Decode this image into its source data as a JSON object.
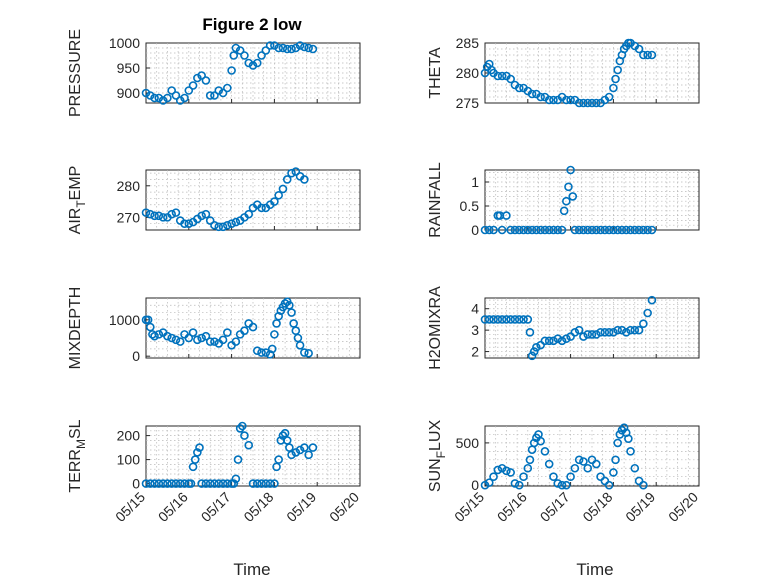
{
  "colors": {
    "marker": "#0072BD",
    "axis": "#262626",
    "grid": "#b8b8b8"
  },
  "chart_data": {
    "type": "scatter",
    "title": "Figure 2 low",
    "marker": "circle-open",
    "grid": true,
    "x_axis": {
      "ticks": [
        "05/15",
        "05/16",
        "05/17",
        "05/18",
        "05/19",
        "05/20"
      ],
      "range": [
        "05/15",
        "05/20"
      ],
      "label": "Time"
    },
    "panels": [
      {
        "name": "pressure",
        "ylabel": "PRESSURE",
        "ylim": [
          880,
          1000
        ],
        "yticks": [
          900,
          950,
          1000
        ],
        "x": [
          0,
          0.1,
          0.2,
          0.3,
          0.4,
          0.5,
          0.6,
          0.7,
          0.8,
          0.9,
          1.0,
          1.1,
          1.2,
          1.3,
          1.4,
          1.5,
          1.6,
          1.7,
          1.8,
          1.9,
          2.0,
          2.05,
          2.1,
          2.2,
          2.3,
          2.4,
          2.5,
          2.6,
          2.7,
          2.8,
          2.9,
          3.0,
          3.1,
          3.2,
          3.3,
          3.4,
          3.5,
          3.6,
          3.7,
          3.8,
          3.9
        ],
        "y": [
          900,
          895,
          890,
          890,
          885,
          890,
          905,
          895,
          885,
          890,
          905,
          915,
          930,
          935,
          925,
          895,
          895,
          905,
          900,
          910,
          945,
          975,
          990,
          985,
          975,
          960,
          955,
          960,
          975,
          985,
          995,
          995,
          990,
          990,
          988,
          988,
          990,
          995,
          992,
          990,
          988
        ]
      },
      {
        "name": "theta",
        "ylabel": "THETA",
        "ylim": [
          275,
          285
        ],
        "yticks": [
          275,
          280,
          285
        ],
        "x": [
          0,
          0.05,
          0.1,
          0.15,
          0.2,
          0.3,
          0.4,
          0.5,
          0.6,
          0.7,
          0.8,
          0.9,
          1.0,
          1.1,
          1.2,
          1.3,
          1.4,
          1.5,
          1.6,
          1.7,
          1.8,
          1.9,
          2.0,
          2.1,
          2.2,
          2.3,
          2.4,
          2.5,
          2.6,
          2.7,
          2.8,
          2.9,
          3.0,
          3.05,
          3.1,
          3.15,
          3.2,
          3.25,
          3.3,
          3.35,
          3.4,
          3.5,
          3.6,
          3.7,
          3.8,
          3.9
        ],
        "y": [
          280,
          281,
          281.5,
          280.5,
          280,
          279.5,
          279.5,
          279.5,
          279,
          278,
          277.5,
          277.5,
          277,
          276.5,
          276.5,
          276,
          276,
          275.5,
          275.5,
          275.5,
          276,
          275.5,
          275.5,
          275.5,
          275,
          275,
          275,
          275,
          275,
          275,
          275.5,
          276,
          277.5,
          279,
          280.5,
          282,
          283,
          284,
          284.5,
          285,
          285,
          284.5,
          284,
          283,
          283,
          283
        ]
      },
      {
        "name": "air_temp",
        "ylabel": "AIR_TEMP",
        "ylim": [
          266,
          285
        ],
        "yticks": [
          270,
          280
        ],
        "x": [
          0,
          0.1,
          0.2,
          0.3,
          0.4,
          0.5,
          0.6,
          0.7,
          0.8,
          0.9,
          1.0,
          1.1,
          1.2,
          1.3,
          1.4,
          1.5,
          1.6,
          1.7,
          1.8,
          1.9,
          2.0,
          2.1,
          2.2,
          2.3,
          2.4,
          2.5,
          2.6,
          2.7,
          2.8,
          2.9,
          3.0,
          3.1,
          3.2,
          3.3,
          3.4,
          3.5,
          3.6,
          3.7
        ],
        "y": [
          271.5,
          271,
          270.5,
          270.5,
          270,
          270,
          271,
          271.5,
          269,
          268,
          268,
          268.5,
          269.5,
          270.5,
          271,
          269,
          267.5,
          267,
          267,
          267.5,
          268,
          268.5,
          269,
          270,
          271,
          273,
          274,
          273,
          273,
          274,
          275,
          277,
          279,
          282,
          284,
          284.5,
          283,
          282
        ]
      },
      {
        "name": "rainfall",
        "ylabel": "RAINFALL",
        "ylim": [
          0,
          1.25
        ],
        "yticks": [
          0,
          0.5,
          1
        ],
        "x": [
          0,
          0.1,
          0.2,
          0.3,
          0.35,
          0.4,
          0.5,
          0.6,
          0.7,
          0.8,
          0.9,
          1.0,
          1.1,
          1.2,
          1.3,
          1.4,
          1.5,
          1.6,
          1.7,
          1.8,
          1.85,
          1.9,
          1.95,
          2.0,
          2.05,
          2.1,
          2.2,
          2.3,
          2.4,
          2.5,
          2.6,
          2.7,
          2.8,
          2.9,
          3.0,
          3.1,
          3.2,
          3.3,
          3.4,
          3.5,
          3.6,
          3.7,
          3.8,
          3.9
        ],
        "y": [
          0,
          0,
          0,
          0.3,
          0.3,
          0,
          0.3,
          0,
          0,
          0,
          0,
          0,
          0,
          0,
          0,
          0,
          0,
          0,
          0,
          0,
          0.4,
          0.6,
          0.9,
          1.25,
          0.7,
          0,
          0,
          0,
          0,
          0,
          0,
          0,
          0,
          0,
          0,
          0,
          0,
          0,
          0,
          0,
          0,
          0,
          0,
          0
        ]
      },
      {
        "name": "mixdepth",
        "ylabel": "MIXDEPTH",
        "ylim": [
          -50,
          1600
        ],
        "yticks": [
          0,
          1000
        ],
        "x": [
          0,
          0.05,
          0.1,
          0.15,
          0.2,
          0.3,
          0.4,
          0.5,
          0.6,
          0.7,
          0.8,
          0.9,
          1.0,
          1.1,
          1.2,
          1.3,
          1.4,
          1.5,
          1.6,
          1.7,
          1.8,
          1.9,
          2.0,
          2.1,
          2.2,
          2.3,
          2.4,
          2.5,
          2.6,
          2.7,
          2.8,
          2.9,
          2.95,
          3.0,
          3.05,
          3.1,
          3.15,
          3.2,
          3.25,
          3.3,
          3.35,
          3.4,
          3.45,
          3.5,
          3.55,
          3.6,
          3.7,
          3.8
        ],
        "y": [
          1000,
          1000,
          800,
          600,
          550,
          600,
          650,
          550,
          500,
          450,
          400,
          600,
          500,
          650,
          450,
          500,
          550,
          400,
          400,
          350,
          450,
          650,
          300,
          400,
          600,
          700,
          900,
          800,
          150,
          100,
          100,
          50,
          200,
          600,
          900,
          1100,
          1250,
          1350,
          1450,
          1500,
          1400,
          1200,
          900,
          700,
          500,
          300,
          100,
          80
        ]
      },
      {
        "name": "h2omixra",
        "ylabel": "H2OMIXRA",
        "ylim": [
          1.7,
          4.5
        ],
        "yticks": [
          2,
          3,
          4
        ],
        "x": [
          0,
          0.1,
          0.2,
          0.3,
          0.4,
          0.5,
          0.6,
          0.7,
          0.8,
          0.9,
          1.0,
          1.05,
          1.1,
          1.15,
          1.2,
          1.3,
          1.4,
          1.5,
          1.6,
          1.7,
          1.8,
          1.9,
          2.0,
          2.1,
          2.2,
          2.3,
          2.4,
          2.5,
          2.6,
          2.7,
          2.8,
          2.9,
          3.0,
          3.1,
          3.2,
          3.3,
          3.4,
          3.5,
          3.6,
          3.7,
          3.8,
          3.9
        ],
        "y": [
          3.5,
          3.5,
          3.5,
          3.5,
          3.5,
          3.5,
          3.5,
          3.5,
          3.5,
          3.5,
          3.5,
          2.9,
          1.8,
          2,
          2.2,
          2.3,
          2.5,
          2.5,
          2.5,
          2.6,
          2.5,
          2.6,
          2.7,
          2.9,
          3.0,
          2.7,
          2.8,
          2.8,
          2.8,
          2.9,
          2.9,
          2.9,
          2.9,
          3.0,
          3.0,
          2.9,
          3.0,
          3.0,
          3.0,
          3.3,
          3.8,
          4.4
        ]
      },
      {
        "name": "terr_msl",
        "ylabel": "TERR_MSL",
        "ylim": [
          -10,
          240
        ],
        "yticks": [
          0,
          100,
          200
        ],
        "x": [
          0,
          0.1,
          0.2,
          0.3,
          0.4,
          0.5,
          0.6,
          0.7,
          0.8,
          0.9,
          1.0,
          1.05,
          1.1,
          1.15,
          1.2,
          1.25,
          1.3,
          1.4,
          1.5,
          1.6,
          1.7,
          1.8,
          1.9,
          2.0,
          2.05,
          2.1,
          2.15,
          2.2,
          2.25,
          2.3,
          2.4,
          2.5,
          2.6,
          2.7,
          2.8,
          2.9,
          3.0,
          3.05,
          3.1,
          3.15,
          3.2,
          3.25,
          3.3,
          3.35,
          3.4,
          3.5,
          3.6,
          3.7,
          3.8,
          3.9
        ],
        "y": [
          0,
          0,
          0,
          0,
          0,
          0,
          0,
          0,
          0,
          0,
          0,
          0,
          70,
          100,
          130,
          150,
          0,
          0,
          0,
          0,
          0,
          0,
          0,
          0,
          0,
          20,
          100,
          230,
          240,
          200,
          160,
          0,
          0,
          0,
          0,
          0,
          0,
          70,
          100,
          180,
          200,
          210,
          180,
          150,
          120,
          130,
          140,
          150,
          120,
          150
        ]
      },
      {
        "name": "sun_flux",
        "ylabel": "SUN_FLUX",
        "ylim": [
          -10,
          700
        ],
        "yticks": [
          0,
          500
        ],
        "x": [
          0,
          0.1,
          0.2,
          0.3,
          0.4,
          0.5,
          0.6,
          0.7,
          0.8,
          0.9,
          1.0,
          1.05,
          1.1,
          1.15,
          1.2,
          1.25,
          1.3,
          1.4,
          1.5,
          1.6,
          1.7,
          1.8,
          1.9,
          2.0,
          2.1,
          2.2,
          2.3,
          2.4,
          2.5,
          2.6,
          2.7,
          2.8,
          2.9,
          3.0,
          3.05,
          3.1,
          3.15,
          3.2,
          3.25,
          3.3,
          3.35,
          3.4,
          3.5,
          3.6,
          3.7
        ],
        "y": [
          0,
          30,
          100,
          180,
          200,
          170,
          150,
          20,
          0,
          100,
          200,
          300,
          420,
          500,
          560,
          600,
          520,
          400,
          250,
          100,
          20,
          0,
          0,
          100,
          200,
          300,
          280,
          200,
          300,
          250,
          100,
          50,
          0,
          150,
          300,
          500,
          600,
          650,
          680,
          620,
          550,
          400,
          200,
          50,
          0
        ]
      }
    ]
  }
}
